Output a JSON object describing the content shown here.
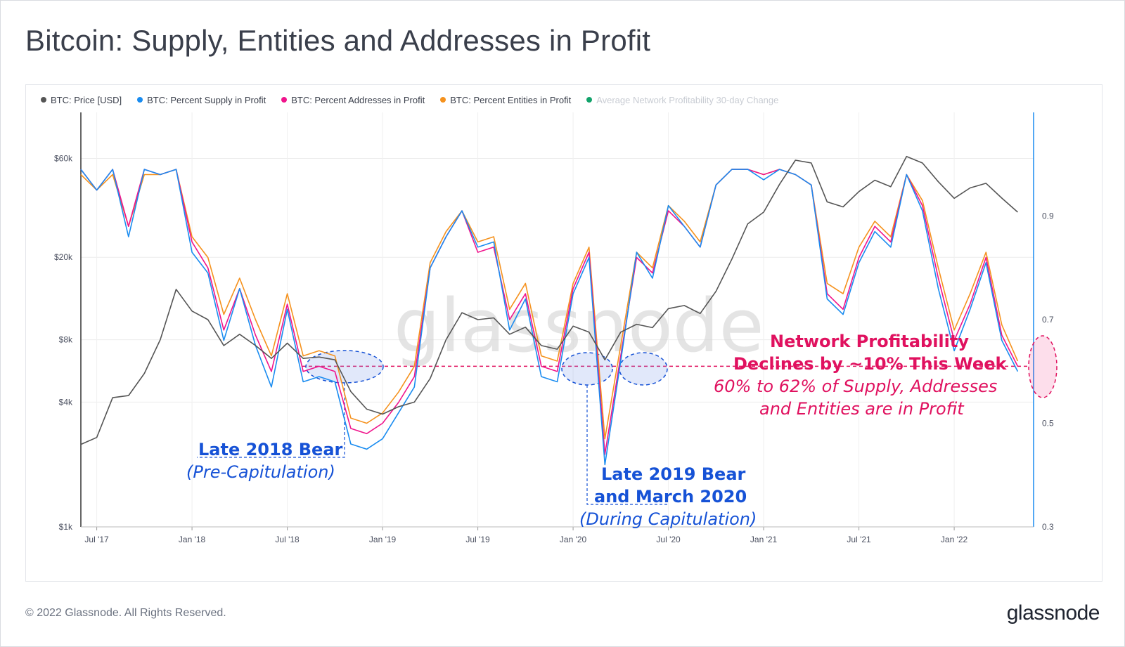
{
  "title": "Bitcoin: Supply, Entities and Addresses in Profit",
  "legend": [
    {
      "label": "BTC: Price [USD]",
      "color": "#555555"
    },
    {
      "label": "BTC: Percent Supply in Profit",
      "color": "#1a8cf0"
    },
    {
      "label": "BTC: Percent Addresses in Profit",
      "color": "#f0148c"
    },
    {
      "label": "BTC: Percent Entities in Profit",
      "color": "#f5921e"
    },
    {
      "label": "Average Network Profitability 30-day Change",
      "color": "#12a36b"
    }
  ],
  "watermark": "glassnode",
  "footer": {
    "copyright": "© 2022 Glassnode. All Rights Reserved.",
    "brand": "glassnode"
  },
  "annotations": {
    "late2018_title": "Late 2018 Bear",
    "late2018_sub": "(Pre-Capitulation)",
    "late2019_line1": "Late 2019 Bear",
    "late2019_line2": "and March 2020",
    "late2019_sub": "(During Capitulation)",
    "network_line1": "Network Profitability",
    "network_line2": "Declines by ~10% This Week",
    "network_line3": "60% to 62% of Supply, Addresses",
    "network_line4": "and Entities are in Profit"
  },
  "chart_data": {
    "type": "line",
    "x_ticks": [
      "Jul '17",
      "Jan '18",
      "Jul '18",
      "Jan '19",
      "Jul '19",
      "Jan '20",
      "Jul '20",
      "Jan '21",
      "Jul '21",
      "Jan '22"
    ],
    "y_left": {
      "ticks": [
        "$1k",
        "$4k",
        "$8k",
        "$20k",
        "$60k"
      ],
      "scale": "log"
    },
    "y_right": {
      "ticks": [
        "0.3",
        "0.5",
        "0.7",
        "0.9"
      ],
      "range": [
        0.3,
        1.1
      ]
    },
    "x_range": [
      "2017-06",
      "2022-06"
    ],
    "series": [
      {
        "name": "BTC: Price [USD]",
        "axis": "left",
        "color": "#555555",
        "points": [
          [
            "2017-06",
            2500
          ],
          [
            "2017-07",
            2700
          ],
          [
            "2017-08",
            4200
          ],
          [
            "2017-09",
            4300
          ],
          [
            "2017-10",
            5500
          ],
          [
            "2017-11",
            8000
          ],
          [
            "2017-12",
            14000
          ],
          [
            "2018-01",
            11000
          ],
          [
            "2018-02",
            10000
          ],
          [
            "2018-03",
            7500
          ],
          [
            "2018-04",
            8500
          ],
          [
            "2018-05",
            7500
          ],
          [
            "2018-06",
            6500
          ],
          [
            "2018-07",
            7700
          ],
          [
            "2018-08",
            6500
          ],
          [
            "2018-09",
            6600
          ],
          [
            "2018-10",
            6400
          ],
          [
            "2018-11",
            4500
          ],
          [
            "2018-12",
            3700
          ],
          [
            "2019-01",
            3500
          ],
          [
            "2019-02",
            3800
          ],
          [
            "2019-03",
            4000
          ],
          [
            "2019-04",
            5200
          ],
          [
            "2019-05",
            8000
          ],
          [
            "2019-06",
            10800
          ],
          [
            "2019-07",
            10000
          ],
          [
            "2019-08",
            10200
          ],
          [
            "2019-09",
            8500
          ],
          [
            "2019-10",
            9200
          ],
          [
            "2019-11",
            7500
          ],
          [
            "2019-12",
            7200
          ],
          [
            "2020-01",
            9300
          ],
          [
            "2020-02",
            8700
          ],
          [
            "2020-03",
            6400
          ],
          [
            "2020-04",
            8700
          ],
          [
            "2020-05",
            9500
          ],
          [
            "2020-06",
            9150
          ],
          [
            "2020-07",
            11300
          ],
          [
            "2020-08",
            11700
          ],
          [
            "2020-09",
            10700
          ],
          [
            "2020-10",
            13700
          ],
          [
            "2020-11",
            19600
          ],
          [
            "2020-12",
            29000
          ],
          [
            "2021-01",
            33000
          ],
          [
            "2021-02",
            45000
          ],
          [
            "2021-03",
            58800
          ],
          [
            "2021-04",
            57000
          ],
          [
            "2021-05",
            37000
          ],
          [
            "2021-06",
            35000
          ],
          [
            "2021-07",
            41500
          ],
          [
            "2021-08",
            47100
          ],
          [
            "2021-09",
            43800
          ],
          [
            "2021-10",
            61300
          ],
          [
            "2021-11",
            57000
          ],
          [
            "2021-12",
            46300
          ],
          [
            "2022-01",
            38500
          ],
          [
            "2022-02",
            43200
          ],
          [
            "2022-03",
            45500
          ],
          [
            "2022-04",
            38600
          ],
          [
            "2022-05",
            33000
          ]
        ]
      },
      {
        "name": "BTC: Percent Supply in Profit",
        "axis": "right",
        "color": "#1a8cf0",
        "points": [
          [
            "2017-06",
            0.99
          ],
          [
            "2017-07",
            0.95
          ],
          [
            "2017-08",
            0.99
          ],
          [
            "2017-09",
            0.86
          ],
          [
            "2017-10",
            0.99
          ],
          [
            "2017-11",
            0.98
          ],
          [
            "2017-12",
            0.99
          ],
          [
            "2018-01",
            0.83
          ],
          [
            "2018-02",
            0.79
          ],
          [
            "2018-03",
            0.66
          ],
          [
            "2018-04",
            0.76
          ],
          [
            "2018-05",
            0.65
          ],
          [
            "2018-06",
            0.57
          ],
          [
            "2018-07",
            0.72
          ],
          [
            "2018-08",
            0.58
          ],
          [
            "2018-09",
            0.59
          ],
          [
            "2018-10",
            0.58
          ],
          [
            "2018-11",
            0.46
          ],
          [
            "2018-12",
            0.45
          ],
          [
            "2019-01",
            0.47
          ],
          [
            "2019-02",
            0.52
          ],
          [
            "2019-03",
            0.57
          ],
          [
            "2019-04",
            0.8
          ],
          [
            "2019-05",
            0.86
          ],
          [
            "2019-06",
            0.91
          ],
          [
            "2019-07",
            0.84
          ],
          [
            "2019-08",
            0.85
          ],
          [
            "2019-09",
            0.68
          ],
          [
            "2019-10",
            0.74
          ],
          [
            "2019-11",
            0.59
          ],
          [
            "2019-12",
            0.58
          ],
          [
            "2020-01",
            0.75
          ],
          [
            "2020-02",
            0.82
          ],
          [
            "2020-03",
            0.42
          ],
          [
            "2020-04",
            0.62
          ],
          [
            "2020-05",
            0.83
          ],
          [
            "2020-06",
            0.78
          ],
          [
            "2020-07",
            0.92
          ],
          [
            "2020-08",
            0.88
          ],
          [
            "2020-09",
            0.84
          ],
          [
            "2020-10",
            0.96
          ],
          [
            "2020-11",
            0.99
          ],
          [
            "2020-12",
            0.99
          ],
          [
            "2021-01",
            0.97
          ],
          [
            "2021-02",
            0.99
          ],
          [
            "2021-03",
            0.98
          ],
          [
            "2021-04",
            0.96
          ],
          [
            "2021-05",
            0.74
          ],
          [
            "2021-06",
            0.71
          ],
          [
            "2021-07",
            0.81
          ],
          [
            "2021-08",
            0.87
          ],
          [
            "2021-09",
            0.84
          ],
          [
            "2021-10",
            0.98
          ],
          [
            "2021-11",
            0.91
          ],
          [
            "2021-12",
            0.76
          ],
          [
            "2022-01",
            0.64
          ],
          [
            "2022-02",
            0.72
          ],
          [
            "2022-03",
            0.81
          ],
          [
            "2022-04",
            0.66
          ],
          [
            "2022-05",
            0.6
          ]
        ]
      },
      {
        "name": "BTC: Percent Addresses in Profit",
        "axis": "right",
        "color": "#f0148c",
        "points": [
          [
            "2017-06",
            0.99
          ],
          [
            "2017-07",
            0.95
          ],
          [
            "2017-08",
            0.99
          ],
          [
            "2017-09",
            0.88
          ],
          [
            "2017-10",
            0.99
          ],
          [
            "2017-11",
            0.98
          ],
          [
            "2017-12",
            0.99
          ],
          [
            "2018-01",
            0.85
          ],
          [
            "2018-02",
            0.8
          ],
          [
            "2018-03",
            0.68
          ],
          [
            "2018-04",
            0.76
          ],
          [
            "2018-05",
            0.67
          ],
          [
            "2018-06",
            0.6
          ],
          [
            "2018-07",
            0.73
          ],
          [
            "2018-08",
            0.6
          ],
          [
            "2018-09",
            0.61
          ],
          [
            "2018-10",
            0.6
          ],
          [
            "2018-11",
            0.49
          ],
          [
            "2018-12",
            0.48
          ],
          [
            "2019-01",
            0.5
          ],
          [
            "2019-02",
            0.54
          ],
          [
            "2019-03",
            0.59
          ],
          [
            "2019-04",
            0.8
          ],
          [
            "2019-05",
            0.86
          ],
          [
            "2019-06",
            0.91
          ],
          [
            "2019-07",
            0.83
          ],
          [
            "2019-08",
            0.84
          ],
          [
            "2019-09",
            0.7
          ],
          [
            "2019-10",
            0.75
          ],
          [
            "2019-11",
            0.61
          ],
          [
            "2019-12",
            0.6
          ],
          [
            "2020-01",
            0.76
          ],
          [
            "2020-02",
            0.83
          ],
          [
            "2020-03",
            0.44
          ],
          [
            "2020-04",
            0.63
          ],
          [
            "2020-05",
            0.82
          ],
          [
            "2020-06",
            0.79
          ],
          [
            "2020-07",
            0.91
          ],
          [
            "2020-08",
            0.88
          ],
          [
            "2020-09",
            0.84
          ],
          [
            "2020-10",
            0.96
          ],
          [
            "2020-11",
            0.99
          ],
          [
            "2020-12",
            0.99
          ],
          [
            "2021-01",
            0.98
          ],
          [
            "2021-02",
            0.99
          ],
          [
            "2021-03",
            0.98
          ],
          [
            "2021-04",
            0.96
          ],
          [
            "2021-05",
            0.75
          ],
          [
            "2021-06",
            0.72
          ],
          [
            "2021-07",
            0.82
          ],
          [
            "2021-08",
            0.88
          ],
          [
            "2021-09",
            0.85
          ],
          [
            "2021-10",
            0.98
          ],
          [
            "2021-11",
            0.92
          ],
          [
            "2021-12",
            0.78
          ],
          [
            "2022-01",
            0.66
          ],
          [
            "2022-02",
            0.73
          ],
          [
            "2022-03",
            0.82
          ],
          [
            "2022-04",
            0.67
          ],
          [
            "2022-05",
            0.61
          ]
        ]
      },
      {
        "name": "BTC: Percent Entities in Profit",
        "axis": "right",
        "color": "#f5921e",
        "points": [
          [
            "2017-06",
            0.98
          ],
          [
            "2017-07",
            0.95
          ],
          [
            "2017-08",
            0.98
          ],
          [
            "2017-09",
            0.88
          ],
          [
            "2017-10",
            0.98
          ],
          [
            "2017-11",
            0.98
          ],
          [
            "2017-12",
            0.99
          ],
          [
            "2018-01",
            0.86
          ],
          [
            "2018-02",
            0.82
          ],
          [
            "2018-03",
            0.71
          ],
          [
            "2018-04",
            0.78
          ],
          [
            "2018-05",
            0.7
          ],
          [
            "2018-06",
            0.63
          ],
          [
            "2018-07",
            0.75
          ],
          [
            "2018-08",
            0.63
          ],
          [
            "2018-09",
            0.64
          ],
          [
            "2018-10",
            0.63
          ],
          [
            "2018-11",
            0.51
          ],
          [
            "2018-12",
            0.5
          ],
          [
            "2019-01",
            0.52
          ],
          [
            "2019-02",
            0.56
          ],
          [
            "2019-03",
            0.61
          ],
          [
            "2019-04",
            0.81
          ],
          [
            "2019-05",
            0.87
          ],
          [
            "2019-06",
            0.91
          ],
          [
            "2019-07",
            0.85
          ],
          [
            "2019-08",
            0.86
          ],
          [
            "2019-09",
            0.72
          ],
          [
            "2019-10",
            0.77
          ],
          [
            "2019-11",
            0.63
          ],
          [
            "2019-12",
            0.62
          ],
          [
            "2020-01",
            0.77
          ],
          [
            "2020-02",
            0.84
          ],
          [
            "2020-03",
            0.47
          ],
          [
            "2020-04",
            0.65
          ],
          [
            "2020-05",
            0.83
          ],
          [
            "2020-06",
            0.8
          ],
          [
            "2020-07",
            0.92
          ],
          [
            "2020-08",
            0.89
          ],
          [
            "2020-09",
            0.85
          ],
          [
            "2020-10",
            0.96
          ],
          [
            "2020-11",
            0.99
          ],
          [
            "2020-12",
            0.99
          ],
          [
            "2021-01",
            0.98
          ],
          [
            "2021-02",
            0.99
          ],
          [
            "2021-03",
            0.98
          ],
          [
            "2021-04",
            0.96
          ],
          [
            "2021-05",
            0.77
          ],
          [
            "2021-06",
            0.75
          ],
          [
            "2021-07",
            0.84
          ],
          [
            "2021-08",
            0.89
          ],
          [
            "2021-09",
            0.86
          ],
          [
            "2021-10",
            0.98
          ],
          [
            "2021-11",
            0.93
          ],
          [
            "2021-12",
            0.8
          ],
          [
            "2022-01",
            0.68
          ],
          [
            "2022-02",
            0.75
          ],
          [
            "2022-03",
            0.83
          ],
          [
            "2022-04",
            0.69
          ],
          [
            "2022-05",
            0.62
          ]
        ]
      }
    ],
    "reference_line": {
      "value": 0.61,
      "axis": "right",
      "style": "dashed",
      "color": "#e0115f"
    },
    "legend_position": "top-left",
    "grid": true
  }
}
